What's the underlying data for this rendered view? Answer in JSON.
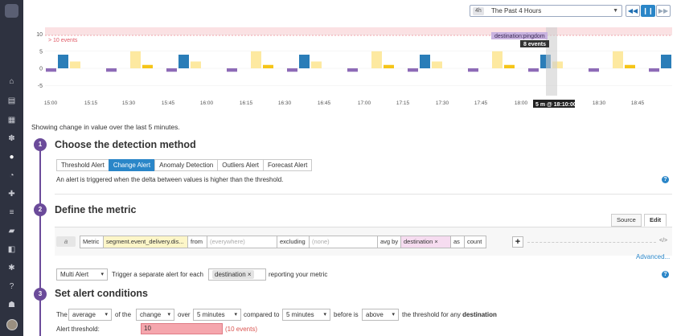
{
  "timeframe": {
    "badge": "4h",
    "label": "The Past 4 Hours"
  },
  "time_controls": {
    "prev": "◀◀",
    "pause": "❙❙",
    "next": "▶▶"
  },
  "chart": {
    "threshold_label": "> 10 events",
    "y_ticks": [
      "10",
      "5",
      "0",
      "-5"
    ],
    "x_ticks": [
      "15:00",
      "15:15",
      "15:30",
      "15:45",
      "16:00",
      "16:15",
      "16:30",
      "16:45",
      "17:00",
      "17:15",
      "17:30",
      "17:45",
      "18:00",
      "18:30",
      "18:45"
    ],
    "tooltip_series": "destination:pingdom",
    "tooltip_value": "8 events",
    "cursor_label": "5 m @ 18:10:00"
  },
  "chart_data": {
    "type": "bar",
    "x": [
      "15:00",
      "15:15",
      "15:30",
      "15:45",
      "16:00",
      "16:15",
      "16:30",
      "16:45",
      "17:00",
      "17:15",
      "17:30",
      "17:45",
      "18:00",
      "18:15",
      "18:30",
      "18:45"
    ],
    "ylim": [
      -8,
      12
    ],
    "threshold": 10,
    "series": [
      {
        "name": "destination:pingdom",
        "color": "#8e6bb7",
        "values": [
          -1,
          1,
          4,
          2,
          -2,
          1,
          -1,
          3,
          -1,
          2,
          -3,
          1,
          8,
          2,
          3,
          -2
        ]
      },
      {
        "color": "#2a7db8",
        "values": [
          0,
          -2,
          0,
          -1,
          -3,
          0,
          1,
          0,
          4,
          -3,
          2,
          -1,
          1,
          -5,
          8,
          8
        ]
      },
      {
        "color": "#fde9a0",
        "values": [
          2,
          5,
          3,
          1,
          0,
          3,
          0,
          0,
          5,
          2,
          0,
          0,
          3,
          0,
          0,
          0
        ]
      },
      {
        "color": "#f5c518",
        "values": [
          1,
          3,
          0,
          5,
          0,
          0,
          0,
          0,
          0,
          6,
          0,
          0,
          0,
          0,
          0,
          0
        ]
      },
      {
        "color": "#a8d4e8",
        "values": [
          0,
          0,
          -6,
          0,
          2,
          0,
          0,
          0,
          0,
          0,
          0,
          0,
          0,
          0,
          0,
          0
        ]
      }
    ]
  },
  "caption": "Showing change in value over the last 5 minutes.",
  "step1": {
    "num": "1",
    "title": "Choose the detection method",
    "tabs": [
      "Threshold Alert",
      "Change Alert",
      "Anomaly Detection",
      "Outliers Alert",
      "Forecast Alert"
    ],
    "active_tab": "Change Alert",
    "note": "An alert is triggered when the delta between values is higher than the threshold."
  },
  "step2": {
    "num": "2",
    "title": "Define the metric",
    "source_tabs": [
      "Source",
      "Edit"
    ],
    "query_letter": "a",
    "metric_label": "Metric",
    "metric_value": "segment.event_delivery.dis...",
    "from_label": "from",
    "from_placeholder": "(everywhere)",
    "excluding_label": "excluding",
    "excluding_placeholder": "(none)",
    "avg_by_label": "avg by",
    "avg_by_tag": "destination ×",
    "as_label": "as",
    "as_value": "count",
    "plus": "+",
    "code_icon": "</>",
    "advanced": "Advanced...",
    "multi_alert": "Multi Alert",
    "trigger_text": "Trigger a separate alert for each",
    "trigger_tag": "destination ×",
    "reporting_text": "reporting your metric"
  },
  "step3": {
    "num": "3",
    "title": "Set alert conditions",
    "the": "The",
    "agg": "average",
    "of_the": "of the",
    "change": "change",
    "over": "over",
    "window": "5 minutes",
    "compared_to": "compared to",
    "compare_window": "5 minutes",
    "before_is": "before is",
    "comparator": "above",
    "suffix_pre": "the threshold for any",
    "suffix_bold": "destination",
    "threshold_label": "Alert threshold:",
    "threshold_value": "10",
    "threshold_hint": "(10 events)"
  }
}
